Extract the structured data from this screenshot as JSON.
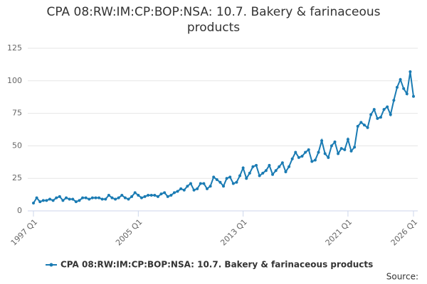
{
  "chart_data": {
    "type": "line",
    "title": "CPA 08:RW:IM:CP:BOP:NSA: 10.7. Bakery & farinaceous products",
    "source_label": "Source:",
    "categories": [
      "1997 Q1",
      null,
      null,
      null,
      null,
      null,
      null,
      null,
      null,
      null,
      null,
      null,
      null,
      null,
      null,
      null,
      null,
      null,
      null,
      null,
      null,
      null,
      null,
      null,
      null,
      null,
      null,
      null,
      null,
      null,
      null,
      null,
      "2005 Q1",
      null,
      null,
      null,
      null,
      null,
      null,
      null,
      null,
      null,
      null,
      null,
      null,
      null,
      null,
      null,
      null,
      null,
      null,
      null,
      null,
      null,
      null,
      null,
      null,
      null,
      null,
      null,
      null,
      null,
      null,
      null,
      "2013 Q1",
      null,
      null,
      null,
      null,
      null,
      null,
      null,
      null,
      null,
      null,
      null,
      null,
      null,
      null,
      null,
      null,
      null,
      null,
      null,
      null,
      null,
      null,
      null,
      null,
      null,
      null,
      null,
      null,
      null,
      null,
      null,
      "2021 Q1",
      null,
      null,
      null,
      null,
      null,
      null,
      null,
      null,
      null,
      null,
      null,
      null,
      null,
      null,
      null,
      null,
      null,
      null,
      null,
      "2026 Q1"
    ],
    "series": [
      {
        "name": "CPA 08:RW:IM:CP:BOP:NSA: 10.7. Bakery & farinaceous products",
        "color": "#1a7bb3",
        "values": [
          6,
          10,
          7,
          8,
          8,
          9,
          8,
          10,
          11,
          8,
          10,
          9,
          9,
          7,
          8,
          10,
          10,
          9,
          10,
          10,
          10,
          9,
          9,
          12,
          10,
          9,
          10,
          12,
          10,
          9,
          11,
          14,
          12,
          10,
          11,
          12,
          12,
          12,
          11,
          13,
          14,
          11,
          12,
          14,
          15,
          17,
          16,
          19,
          21,
          16,
          17,
          21,
          21,
          17,
          19,
          26,
          24,
          22,
          19,
          25,
          26,
          21,
          22,
          27,
          33,
          25,
          29,
          34,
          35,
          27,
          29,
          31,
          35,
          28,
          31,
          34,
          37,
          30,
          34,
          40,
          45,
          41,
          42,
          45,
          47,
          38,
          39,
          45,
          54,
          44,
          41,
          50,
          53,
          44,
          48,
          47,
          55,
          46,
          49,
          65,
          68,
          66,
          64,
          74,
          78,
          71,
          72,
          78,
          80,
          74,
          85,
          95,
          101,
          94,
          90,
          107,
          88
        ]
      }
    ],
    "ylim": [
      0,
      125
    ],
    "yticks": [
      0,
      25,
      50,
      75,
      100,
      125
    ],
    "grid": true,
    "legend": "bottom"
  }
}
